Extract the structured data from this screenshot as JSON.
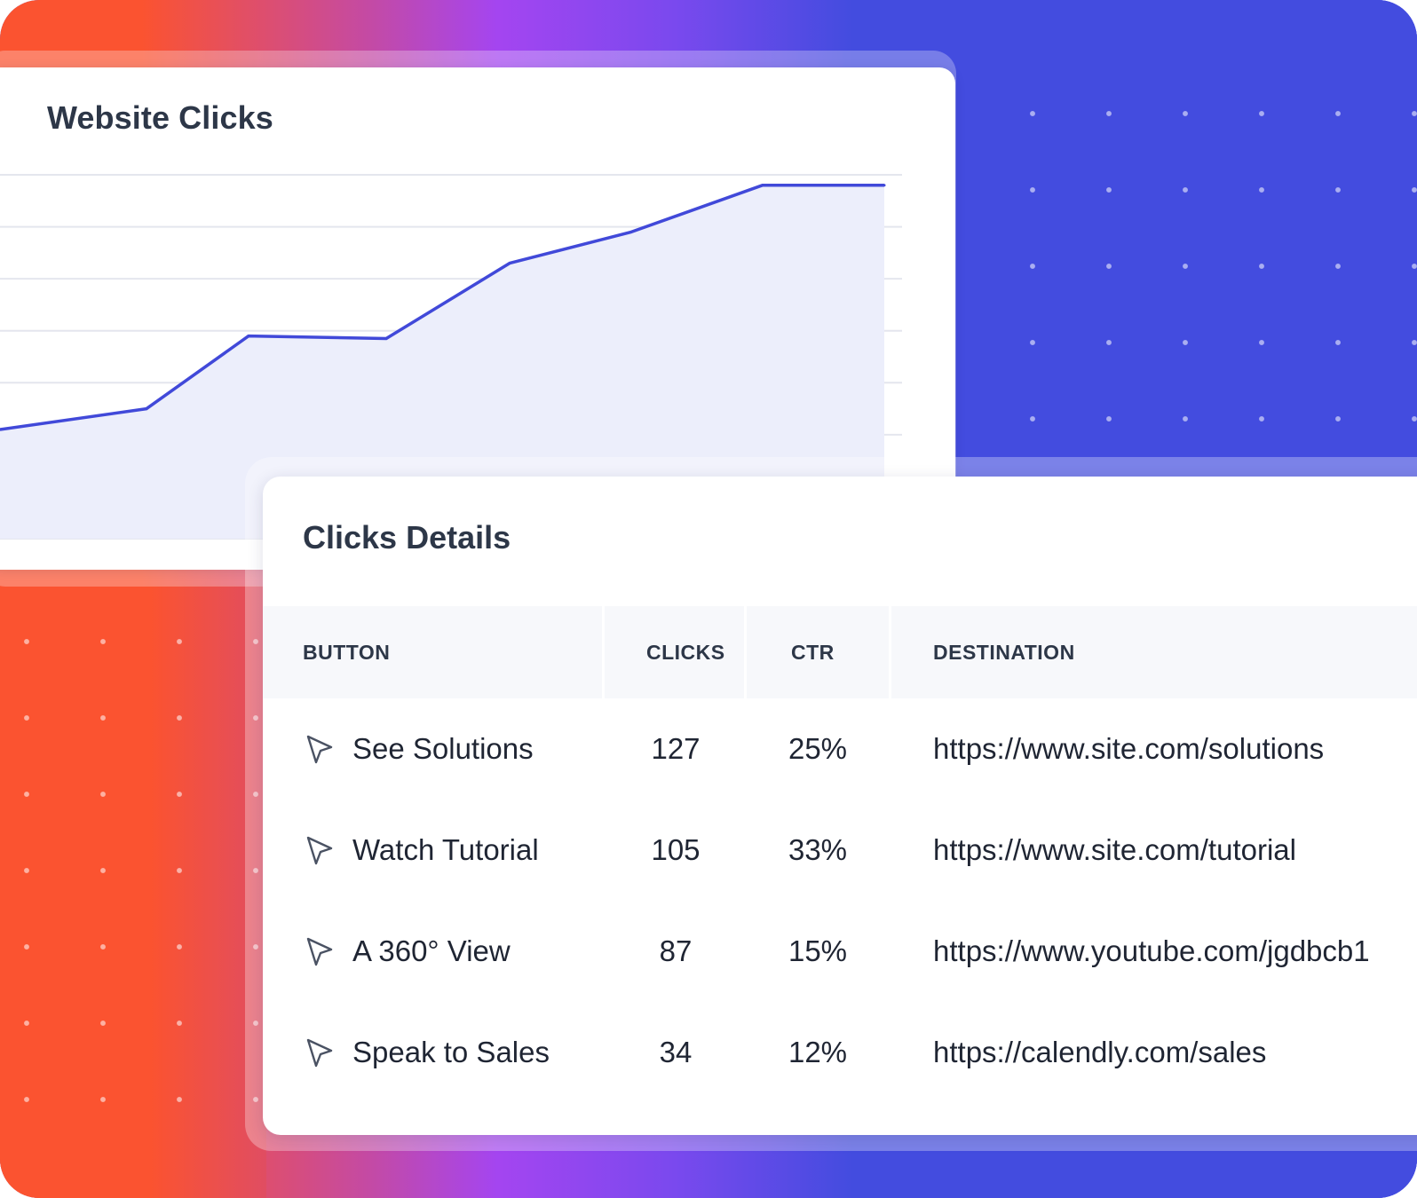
{
  "chart_card": {
    "title": "Website Clicks"
  },
  "chart_data": {
    "type": "area",
    "title": "Website Clicks",
    "x": [
      1,
      2,
      3,
      4,
      5,
      6,
      7,
      8
    ],
    "series": [
      {
        "values": [
          21,
          25,
          39,
          38.5,
          53,
          59,
          68,
          68
        ]
      }
    ],
    "ylim": [
      0,
      70
    ],
    "grid": true,
    "colors": {
      "line": "#4149d9",
      "fill": "#eceefb"
    }
  },
  "details_card": {
    "title": "Clicks Details",
    "columns": {
      "button": "BUTTON",
      "clicks": "CLICKS",
      "ctr": "CTR",
      "destination": "DESTINATION"
    },
    "rows": [
      {
        "icon": "cursor-icon",
        "button": "See Solutions",
        "clicks": "127",
        "ctr": "25%",
        "destination": "https://www.site.com/solutions"
      },
      {
        "icon": "cursor-icon",
        "button": "Watch Tutorial",
        "clicks": "105",
        "ctr": "33%",
        "destination": "https://www.site.com/tutorial"
      },
      {
        "icon": "cursor-icon",
        "button": "A 360° View",
        "clicks": "87",
        "ctr": "15%",
        "destination": "https://www.youtube.com/jgdbcb1"
      },
      {
        "icon": "cursor-icon",
        "button": "Speak to Sales",
        "clicks": "34",
        "ctr": "12%",
        "destination": "https://calendly.com/sales"
      }
    ]
  },
  "colors": {
    "blue": "#434cdf",
    "orange": "#fb5330",
    "purple": "#a445f0",
    "text": "#2d3748"
  }
}
